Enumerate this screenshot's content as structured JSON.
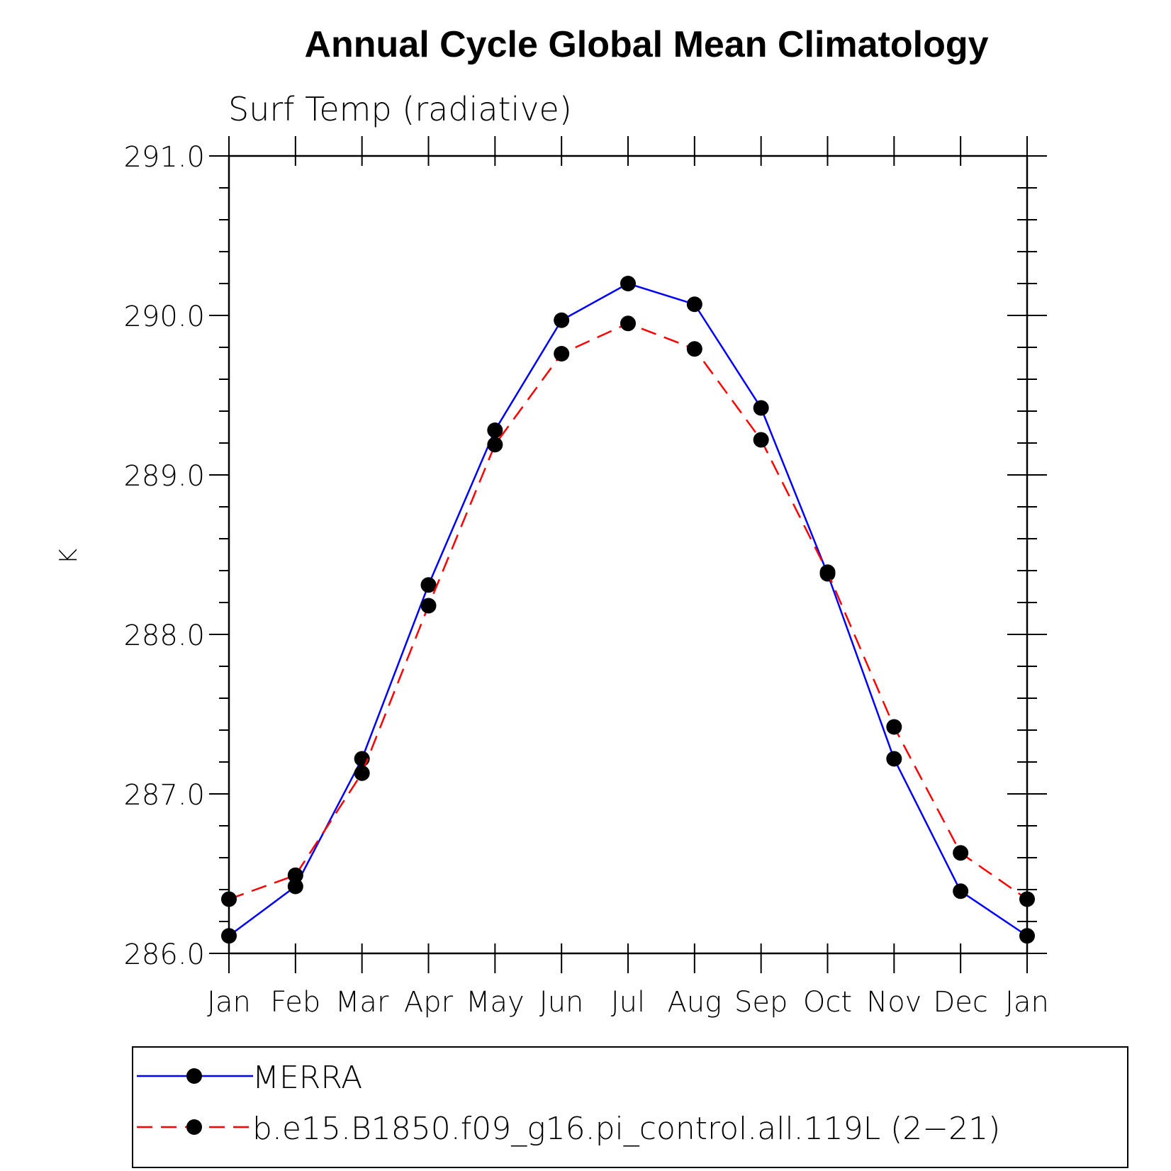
{
  "chart_data": {
    "type": "line",
    "title": "Annual Cycle Global Mean Climatology",
    "subtitle": "Surf Temp (radiative)",
    "xlabel": "",
    "ylabel": "K",
    "categories": [
      "Jan",
      "Feb",
      "Mar",
      "Apr",
      "May",
      "Jun",
      "Jul",
      "Aug",
      "Sep",
      "Oct",
      "Nov",
      "Dec",
      "Jan"
    ],
    "ylim": [
      286.0,
      291.0
    ],
    "yticks": [
      "286.0",
      "287.0",
      "288.0",
      "289.0",
      "290.0",
      "291.0"
    ],
    "grid": false,
    "legend_position": "bottom",
    "series": [
      {
        "name": "MERRA",
        "color": "#0000ff",
        "dash": "solid",
        "marker": "filled-circle",
        "values": [
          286.11,
          286.42,
          287.22,
          288.31,
          289.28,
          289.97,
          290.2,
          290.07,
          289.42,
          288.38,
          287.22,
          286.39,
          286.11
        ]
      },
      {
        "name": "b.e15.B1850.f09_g16.pi_control.all.119L (2−21)",
        "color": "#ff0000",
        "dash": "dashed",
        "marker": "filled-circle",
        "values": [
          286.34,
          286.49,
          287.13,
          288.18,
          289.19,
          289.76,
          289.95,
          289.79,
          289.22,
          288.39,
          287.42,
          286.63,
          286.34
        ]
      }
    ]
  }
}
